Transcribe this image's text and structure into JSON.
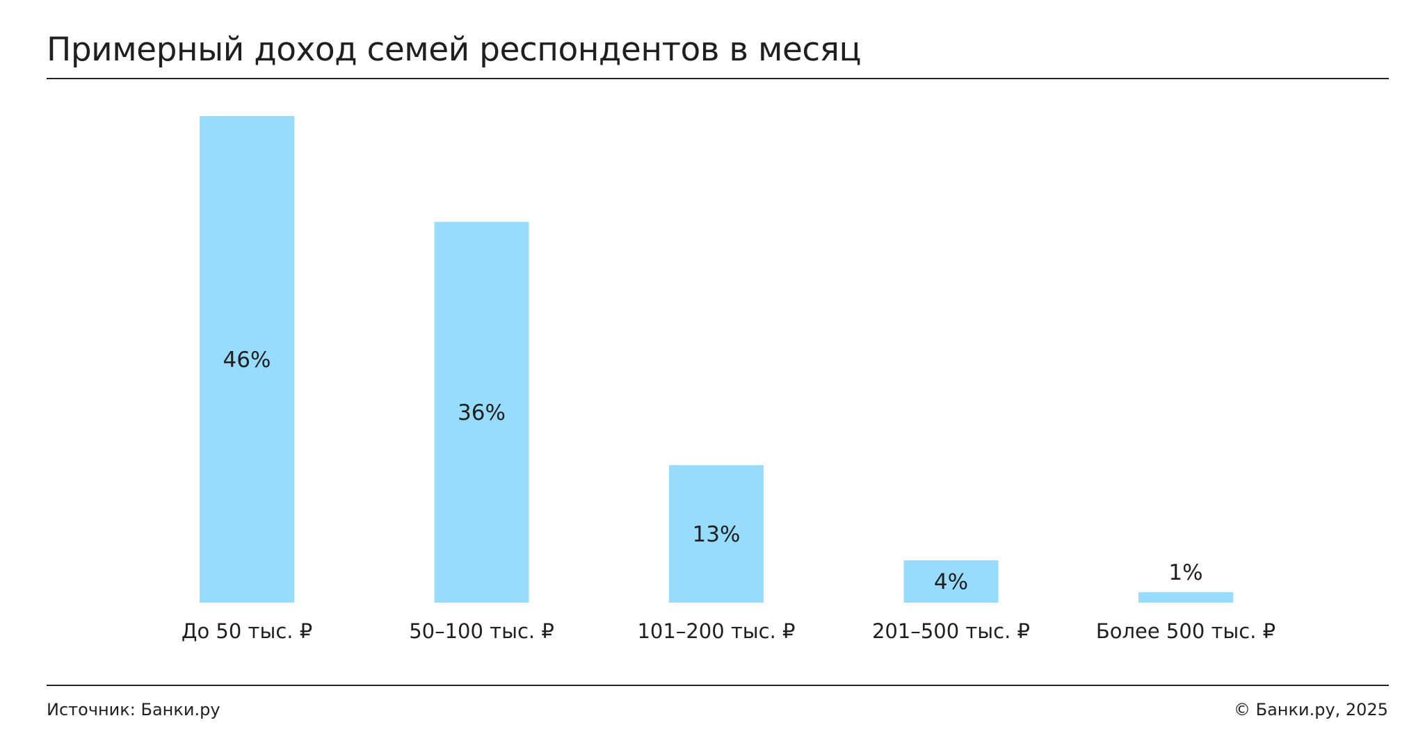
{
  "title": "Примерный доход семей респондентов в месяц",
  "footer": {
    "source": "Источник: Банки.ру",
    "copyright": "© Банки.ру, 2025"
  },
  "colors": {
    "bar": "#97dcfd",
    "text": "#1f1f1f"
  },
  "chart_data": {
    "type": "bar",
    "title": "Примерный доход семей респондентов в месяц",
    "categories": [
      "До 50 тыс. ₽",
      "50–100 тыс. ₽",
      "101–200 тыс. ₽",
      "201–500 тыс. ₽",
      "Более 500 тыс. ₽"
    ],
    "values": [
      46,
      36,
      13,
      4,
      1
    ],
    "value_labels": [
      "46%",
      "36%",
      "13%",
      "4%",
      "1%"
    ],
    "ylim": [
      0,
      46
    ],
    "xlabel": "",
    "ylabel": "",
    "grid": false,
    "legend": "none"
  }
}
